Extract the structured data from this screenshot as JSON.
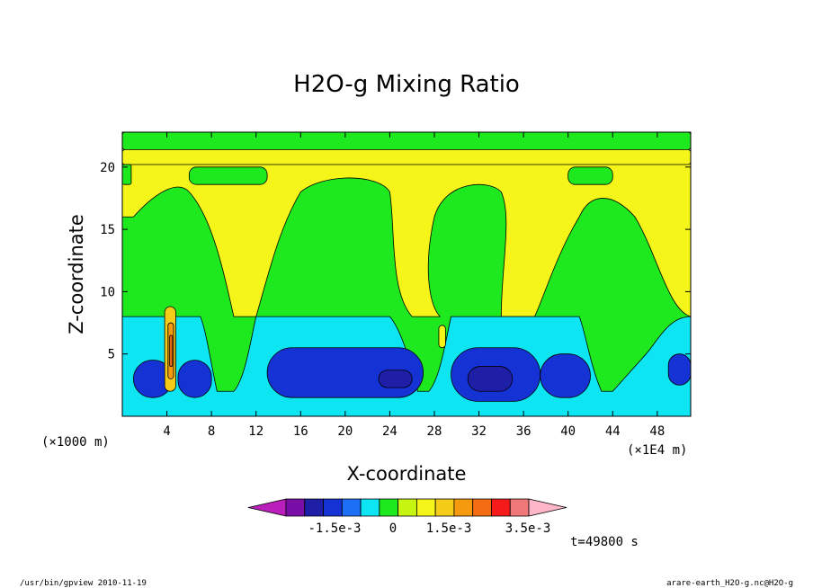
{
  "chart_data": {
    "type": "heatmap",
    "title": "H2O-g Mixing Ratio",
    "xlabel": "X-coordinate",
    "ylabel": "Z-coordinate",
    "x_unit_left": "(×1000 m)",
    "x_unit_right": "(×1E4 m)",
    "xlim": [
      0,
      51
    ],
    "ylim": [
      0,
      22.8
    ],
    "x_ticks": [
      4,
      8,
      12,
      16,
      20,
      24,
      28,
      32,
      36,
      40,
      44,
      48
    ],
    "y_ticks": [
      5,
      10,
      15,
      20
    ],
    "colorbar": {
      "levels": [
        -0.0025,
        -0.002,
        -0.0015,
        -0.001,
        -0.0005,
        0,
        0.0005,
        0.001,
        0.0015,
        0.002,
        0.0025,
        0.003,
        0.0035,
        0.004
      ],
      "colors": [
        "#bb1fbb",
        "#7a0fa8",
        "#1e1ea6",
        "#1533d4",
        "#1d6ff5",
        "#0ee5f2",
        "#1ee81e",
        "#c5f510",
        "#f5f51a",
        "#f5cc17",
        "#f59a0e",
        "#f56d12",
        "#f51b1b",
        "#f07878",
        "#ffb6c8"
      ],
      "tick_labels": [
        "-1.5e-3",
        "0",
        "1.5e-3",
        "3.5e-3"
      ]
    },
    "time_label": "t=49800 s",
    "field_model": "Approximate reconstruction: yellow/green banding aloft, cyan and blue moist anomalies in lower levels with embedded dark-blue cores and a narrow orange/red plume near x=4-5.",
    "features": [
      {
        "kind": "low_core",
        "x": [
          1,
          4.5
        ],
        "z": [
          1.5,
          4.5
        ],
        "level": -0.0015
      },
      {
        "kind": "low_core",
        "x": [
          5,
          8
        ],
        "z": [
          1.5,
          4.5
        ],
        "level": -0.0015
      },
      {
        "kind": "low_core",
        "x": [
          13,
          27
        ],
        "z": [
          1.5,
          5.5
        ],
        "level": -0.0015
      },
      {
        "kind": "low_core",
        "x": [
          29.5,
          37.5
        ],
        "z": [
          1.2,
          5.5
        ],
        "level": -0.0015
      },
      {
        "kind": "low_core",
        "x": [
          37.5,
          42
        ],
        "z": [
          1.5,
          5.0
        ],
        "level": -0.0015
      },
      {
        "kind": "low_core",
        "x": [
          49,
          51
        ],
        "z": [
          2.5,
          5.0
        ],
        "level": -0.0015
      },
      {
        "kind": "high_plume",
        "x": [
          4,
          5
        ],
        "z": [
          1.5,
          8.5
        ],
        "level": 0.003
      }
    ]
  },
  "footer_left": "/usr/bin/gpview  2010-11-19",
  "footer_right": "arare-earth_H2O-g.nc@H2O-g"
}
